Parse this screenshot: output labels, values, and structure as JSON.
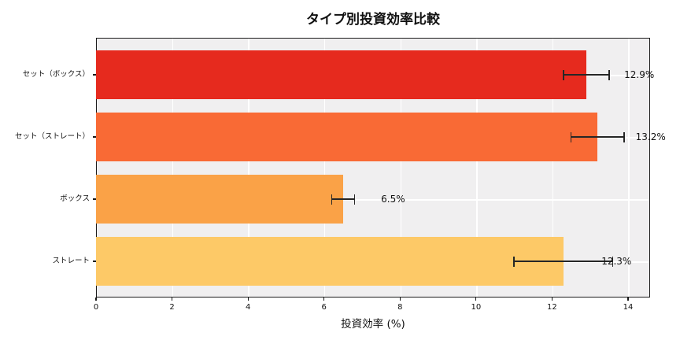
{
  "chart_data": {
    "type": "bar",
    "orientation": "horizontal",
    "title": "タイプ別投資効率比較",
    "xlabel": "投資効率 (%)",
    "categories": [
      "セット（ボックス）",
      "セット（ストレート）",
      "ボックス",
      "ストレート"
    ],
    "values": [
      12.9,
      13.2,
      6.5,
      12.3
    ],
    "errors": [
      0.6,
      0.7,
      0.3,
      1.3
    ],
    "value_labels": [
      "12.9%",
      "13.2%",
      "6.5%",
      "12.3%"
    ],
    "bar_colors": [
      "#e62a1e",
      "#f96a35",
      "#faa247",
      "#fdc967"
    ],
    "xticks": [
      0,
      2,
      4,
      6,
      8,
      10,
      12,
      14
    ],
    "xtick_labels": [
      "0",
      "2",
      "4",
      "6",
      "8",
      "10",
      "12",
      "14"
    ],
    "xlim": [
      0,
      14.58
    ],
    "grid": true,
    "legend": "none",
    "plot_background": "#f0eff0",
    "grid_color": "#ffffff",
    "error_bar_color": "#262626",
    "spine_color": "#1a1a1a"
  }
}
